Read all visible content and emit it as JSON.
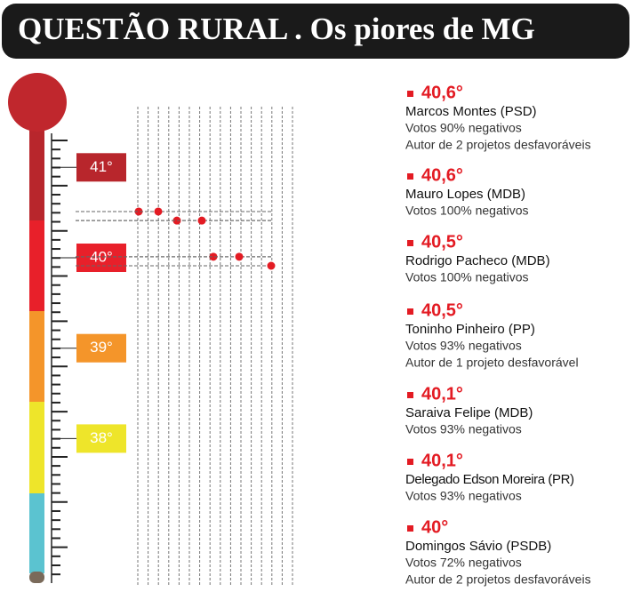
{
  "chart_data": {
    "type": "thermometer",
    "title": "QUESTÃO RURAL . Os piores de MG",
    "yticks": [
      {
        "value": 41,
        "label": "41°"
      },
      {
        "value": 40,
        "label": "40°"
      },
      {
        "value": 39,
        "label": "39°"
      },
      {
        "value": 38,
        "label": "38°"
      }
    ],
    "tick_colors": [
      "#b8262c",
      "#e8202a",
      "#f4952a",
      "#eee52a"
    ],
    "entries": [
      {
        "value": 40.6,
        "value_label": "40,6°",
        "name": "Marcos Montes (PSD)",
        "notes": [
          "Votos 90% negativos",
          "Autor de 2 projetos desfavoráveis"
        ]
      },
      {
        "value": 40.6,
        "value_label": "40,6°",
        "name": "Mauro Lopes (MDB)",
        "notes": [
          "Votos 100% negativos"
        ]
      },
      {
        "value": 40.5,
        "value_label": "40,5°",
        "name": "Rodrigo Pacheco (MDB)",
        "notes": [
          "Votos 100% negativos"
        ]
      },
      {
        "value": 40.5,
        "value_label": "40,5°",
        "name": "Toninho Pinheiro (PP)",
        "notes": [
          "Votos 93% negativos",
          "Autor de 1 projeto desfavorável"
        ]
      },
      {
        "value": 40.1,
        "value_label": "40,1°",
        "name": "Saraiva Felipe (MDB)",
        "notes": [
          "Votos 93% negativos"
        ]
      },
      {
        "value": 40.1,
        "value_label": "40,1°",
        "name": "Delegado Edson Moreira (PR)",
        "notes": [
          "Votos 93% negativos"
        ]
      },
      {
        "value": 40,
        "value_label": "40°",
        "name": "Domingos Sávio (PSDB)",
        "notes": [
          "Votos 72% negativos",
          "Autor de 2 projetos desfavoráveis"
        ]
      }
    ],
    "color": "#e31b23"
  }
}
